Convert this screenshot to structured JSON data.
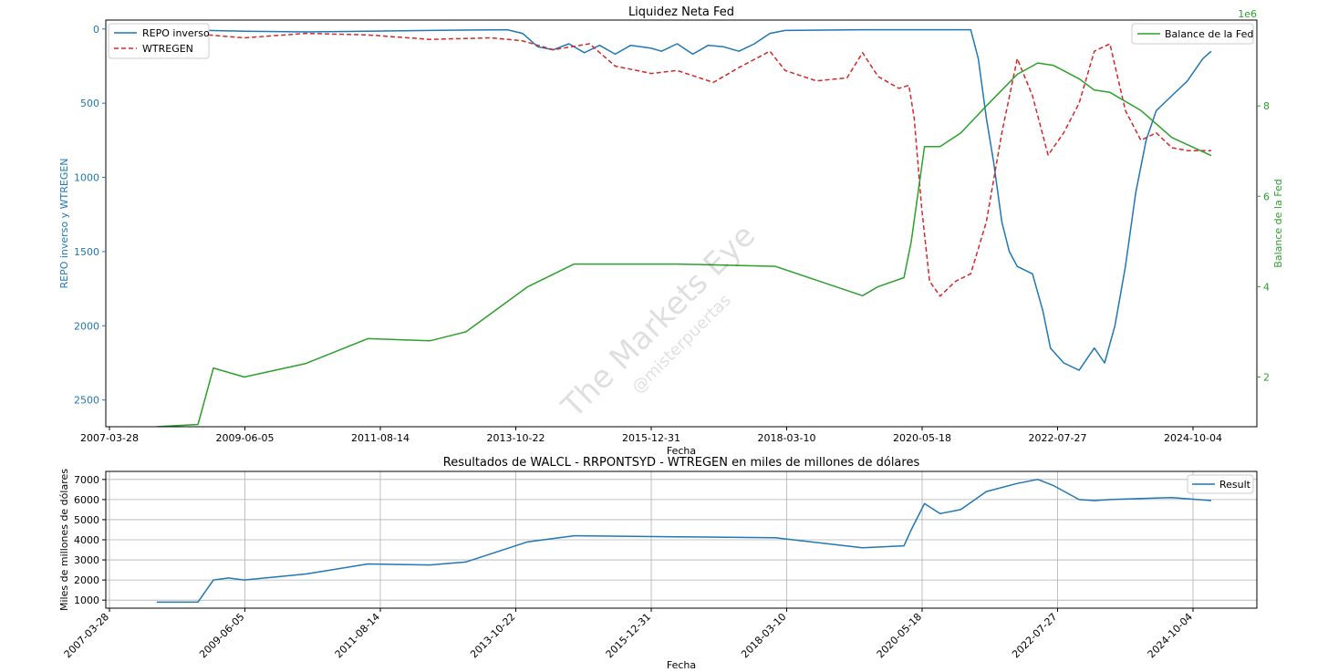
{
  "colors": {
    "repo": "#1f77b4",
    "wtregen": "#d62728",
    "balance": "#2ca02c",
    "result": "#1f77b4",
    "grid": "#b0b0b0",
    "axis": "#000000"
  },
  "watermark": {
    "line1": "The Markets Eye",
    "line2": "@misterpuertas"
  },
  "chart_data": [
    {
      "type": "line",
      "title": "Liquidez Neta Fed",
      "xlabel": "Fecha",
      "ylabel_left": "REPO inverso y WTREGEN",
      "ylabel_right": "Balance de la Fed",
      "right_offset_text": "1e6",
      "x_tick_labels": [
        "2007-03-28",
        "2009-06-05",
        "2011-08-14",
        "2013-10-22",
        "2015-12-31",
        "2018-03-10",
        "2020-05-18",
        "2022-07-27",
        "2024-10-04"
      ],
      "y_left_ticks": [
        "0",
        "500",
        "1000",
        "1500",
        "2000",
        "2500"
      ],
      "y_left_lim_inverted": [
        2680,
        -60
      ],
      "y_right_ticks": [
        "2",
        "4",
        "6",
        "8"
      ],
      "y_right_lim": [
        0.9,
        9.9
      ],
      "legend_left": "upper left",
      "legend_right": "upper right",
      "series": [
        {
          "name": "REPO inverso",
          "axis": "left",
          "style": "solid",
          "points": [
            [
              "2008-11-01",
              10
            ],
            [
              "2009-06-01",
              15
            ],
            [
              "2010-06-01",
              20
            ],
            [
              "2012-06-01",
              10
            ],
            [
              "2013-09-01",
              5
            ],
            [
              "2013-12-01",
              30
            ],
            [
              "2014-03-01",
              120
            ],
            [
              "2014-06-01",
              140
            ],
            [
              "2014-09-01",
              100
            ],
            [
              "2014-12-01",
              160
            ],
            [
              "2015-03-01",
              110
            ],
            [
              "2015-06-01",
              170
            ],
            [
              "2015-09-01",
              110
            ],
            [
              "2015-12-31",
              130
            ],
            [
              "2016-03-01",
              150
            ],
            [
              "2016-06-01",
              100
            ],
            [
              "2016-09-01",
              170
            ],
            [
              "2016-12-01",
              110
            ],
            [
              "2017-03-01",
              120
            ],
            [
              "2017-06-01",
              150
            ],
            [
              "2017-09-01",
              100
            ],
            [
              "2017-12-01",
              30
            ],
            [
              "2018-03-01",
              10
            ],
            [
              "2019-06-01",
              5
            ],
            [
              "2020-03-01",
              5
            ],
            [
              "2020-05-01",
              5
            ],
            [
              "2021-03-01",
              5
            ],
            [
              "2021-04-15",
              200
            ],
            [
              "2021-06-01",
              600
            ],
            [
              "2021-07-15",
              900
            ],
            [
              "2021-09-01",
              1300
            ],
            [
              "2021-10-15",
              1500
            ],
            [
              "2021-12-01",
              1600
            ],
            [
              "2022-03-01",
              1650
            ],
            [
              "2022-05-01",
              1900
            ],
            [
              "2022-06-15",
              2150
            ],
            [
              "2022-09-01",
              2250
            ],
            [
              "2022-12-01",
              2300
            ],
            [
              "2023-03-01",
              2150
            ],
            [
              "2023-05-01",
              2250
            ],
            [
              "2023-07-01",
              2000
            ],
            [
              "2023-09-01",
              1600
            ],
            [
              "2023-11-01",
              1100
            ],
            [
              "2024-01-01",
              750
            ],
            [
              "2024-03-01",
              550
            ],
            [
              "2024-06-01",
              450
            ],
            [
              "2024-09-01",
              350
            ],
            [
              "2024-12-01",
              200
            ],
            [
              "2025-01-20",
              150
            ]
          ]
        },
        {
          "name": "WTREGEN",
          "axis": "left",
          "style": "dashed",
          "points": [
            [
              "2008-11-01",
              40
            ],
            [
              "2009-06-01",
              60
            ],
            [
              "2010-06-01",
              30
            ],
            [
              "2011-06-01",
              40
            ],
            [
              "2012-06-01",
              70
            ],
            [
              "2013-06-01",
              60
            ],
            [
              "2013-12-01",
              80
            ],
            [
              "2014-06-01",
              140
            ],
            [
              "2015-01-01",
              100
            ],
            [
              "2015-06-01",
              250
            ],
            [
              "2016-01-01",
              300
            ],
            [
              "2016-06-01",
              280
            ],
            [
              "2017-01-01",
              360
            ],
            [
              "2017-06-01",
              260
            ],
            [
              "2017-12-01",
              150
            ],
            [
              "2018-03-01",
              280
            ],
            [
              "2018-09-01",
              350
            ],
            [
              "2019-03-01",
              330
            ],
            [
              "2019-06-01",
              160
            ],
            [
              "2019-09-01",
              320
            ],
            [
              "2020-01-01",
              400
            ],
            [
              "2020-03-01",
              380
            ],
            [
              "2020-04-01",
              600
            ],
            [
              "2020-05-15",
              1200
            ],
            [
              "2020-07-01",
              1700
            ],
            [
              "2020-09-01",
              1800
            ],
            [
              "2020-12-01",
              1700
            ],
            [
              "2021-03-01",
              1650
            ],
            [
              "2021-06-01",
              1300
            ],
            [
              "2021-09-01",
              700
            ],
            [
              "2021-12-01",
              200
            ],
            [
              "2022-03-01",
              450
            ],
            [
              "2022-06-01",
              850
            ],
            [
              "2022-09-01",
              700
            ],
            [
              "2022-12-01",
              500
            ],
            [
              "2023-03-01",
              150
            ],
            [
              "2023-06-01",
              100
            ],
            [
              "2023-09-01",
              550
            ],
            [
              "2023-12-01",
              750
            ],
            [
              "2024-03-01",
              700
            ],
            [
              "2024-06-01",
              800
            ],
            [
              "2024-09-01",
              820
            ],
            [
              "2025-01-20",
              820
            ]
          ]
        },
        {
          "name": "Balance de la Fed",
          "axis": "right",
          "style": "solid",
          "points": [
            [
              "2008-01-01",
              0.9
            ],
            [
              "2008-09-01",
              0.95
            ],
            [
              "2008-12-01",
              2.2
            ],
            [
              "2009-03-01",
              2.1
            ],
            [
              "2009-06-01",
              2.0
            ],
            [
              "2010-06-01",
              2.3
            ],
            [
              "2011-06-01",
              2.85
            ],
            [
              "2012-06-01",
              2.8
            ],
            [
              "2013-01-01",
              3.0
            ],
            [
              "2014-01-01",
              4.0
            ],
            [
              "2014-10-01",
              4.5
            ],
            [
              "2016-06-01",
              4.5
            ],
            [
              "2018-01-01",
              4.45
            ],
            [
              "2019-06-01",
              3.8
            ],
            [
              "2019-09-01",
              4.0
            ],
            [
              "2020-02-01",
              4.2
            ],
            [
              "2020-03-15",
              5.0
            ],
            [
              "2020-06-01",
              7.1
            ],
            [
              "2020-09-01",
              7.1
            ],
            [
              "2021-01-01",
              7.4
            ],
            [
              "2021-06-01",
              8.0
            ],
            [
              "2021-12-01",
              8.7
            ],
            [
              "2022-04-01",
              8.95
            ],
            [
              "2022-07-01",
              8.9
            ],
            [
              "2022-12-01",
              8.6
            ],
            [
              "2023-03-01",
              8.35
            ],
            [
              "2023-06-01",
              8.3
            ],
            [
              "2023-12-01",
              7.9
            ],
            [
              "2024-06-01",
              7.3
            ],
            [
              "2025-01-20",
              6.9
            ]
          ]
        }
      ]
    },
    {
      "type": "line",
      "title": "Resultados de WALCL - RRPONTSYD - WTREGEN en miles de millones de dólares",
      "xlabel": "Fecha",
      "ylabel": "Miles de millones de dólares",
      "x_tick_labels": [
        "2007-03-28",
        "2009-06-05",
        "2011-08-14",
        "2013-10-22",
        "2015-12-31",
        "2018-03-10",
        "2020-05-18",
        "2022-07-27",
        "2024-10-04"
      ],
      "y_ticks": [
        "1000",
        "2000",
        "3000",
        "4000",
        "5000",
        "6000",
        "7000"
      ],
      "ylim": [
        600,
        7400
      ],
      "grid": true,
      "legend": "upper right",
      "series": [
        {
          "name": "Result",
          "points": [
            [
              "2008-01-01",
              900
            ],
            [
              "2008-09-01",
              910
            ],
            [
              "2008-12-01",
              2000
            ],
            [
              "2009-03-01",
              2100
            ],
            [
              "2009-06-01",
              2000
            ],
            [
              "2010-06-01",
              2300
            ],
            [
              "2011-06-01",
              2800
            ],
            [
              "2012-06-01",
              2750
            ],
            [
              "2013-01-01",
              2900
            ],
            [
              "2014-01-01",
              3900
            ],
            [
              "2014-10-01",
              4200
            ],
            [
              "2016-06-01",
              4150
            ],
            [
              "2018-01-01",
              4100
            ],
            [
              "2019-06-01",
              3600
            ],
            [
              "2020-02-01",
              3700
            ],
            [
              "2020-03-15",
              4500
            ],
            [
              "2020-06-01",
              5800
            ],
            [
              "2020-09-01",
              5300
            ],
            [
              "2021-01-01",
              5500
            ],
            [
              "2021-06-01",
              6400
            ],
            [
              "2021-12-01",
              6800
            ],
            [
              "2022-04-01",
              7000
            ],
            [
              "2022-07-01",
              6700
            ],
            [
              "2022-12-01",
              6000
            ],
            [
              "2023-03-01",
              5950
            ],
            [
              "2023-06-01",
              6000
            ],
            [
              "2023-12-01",
              6050
            ],
            [
              "2024-06-01",
              6100
            ],
            [
              "2025-01-20",
              5950
            ]
          ]
        }
      ]
    }
  ]
}
